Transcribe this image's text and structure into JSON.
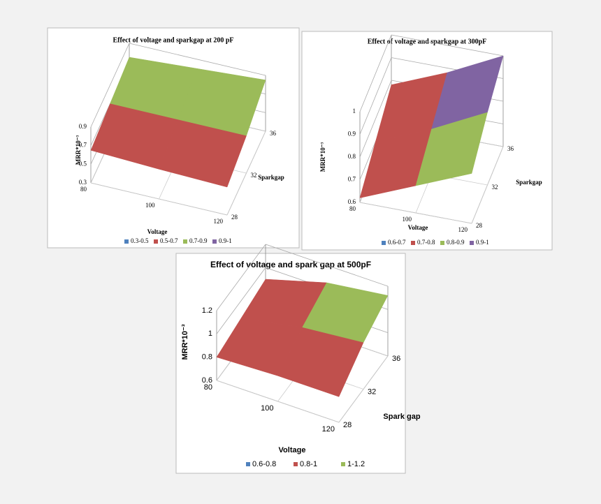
{
  "chart_data": [
    {
      "type": "surface",
      "title": "Effect of voltage and sparkgap at 200 pF",
      "x_label": "Voltage",
      "y_label": "Sparkgap",
      "z_label": "MRR*10⁻³",
      "x": [
        80,
        100,
        120
      ],
      "y": [
        28,
        32,
        36
      ],
      "xlim": [
        80,
        120
      ],
      "ylim": [
        28,
        36
      ],
      "zlim": [
        0.3,
        0.9
      ],
      "xticks": [
        80,
        100,
        120
      ],
      "yticks": [
        28,
        32,
        36
      ],
      "zticks": [
        0.3,
        0.5,
        0.7,
        0.9
      ],
      "z": [
        [
          0.65,
          0.7,
          0.75
        ],
        [
          0.62,
          0.7,
          0.8
        ],
        [
          0.6,
          0.7,
          0.85
        ]
      ],
      "series": [
        {
          "name": "0.3-0.5",
          "color": "#4f81bd"
        },
        {
          "name": "0.5-0.7",
          "color": "#c0504d"
        },
        {
          "name": "0.7-0.9",
          "color": "#9bbb59"
        },
        {
          "name": "0.9-1",
          "color": "#8064a2"
        }
      ]
    },
    {
      "type": "surface",
      "title": "Effect of voltage and sparkgap at 300pF",
      "x_label": "Voltage",
      "y_label": "Sparkgap",
      "z_label": "MRR*10⁻³",
      "x": [
        80,
        100,
        120
      ],
      "y": [
        28,
        32,
        36
      ],
      "xlim": [
        80,
        120
      ],
      "ylim": [
        28,
        36
      ],
      "zlim": [
        0.6,
        1
      ],
      "xticks": [
        80,
        100,
        120
      ],
      "yticks": [
        28,
        32,
        36
      ],
      "zticks": [
        0.6,
        0.7,
        0.8,
        0.9,
        1
      ],
      "z": [
        [
          0.62,
          0.7,
          0.78
        ],
        [
          0.72,
          0.8,
          0.88
        ],
        [
          0.82,
          0.92,
          1
        ]
      ],
      "series": [
        {
          "name": "0.6-0.7",
          "color": "#4f81bd"
        },
        {
          "name": "0.7-0.8",
          "color": "#c0504d"
        },
        {
          "name": "0.8-0.9",
          "color": "#9bbb59"
        },
        {
          "name": "0.9-1",
          "color": "#8064a2"
        }
      ]
    },
    {
      "type": "surface",
      "title": "Effect of voltage and spark gap at 500pF",
      "x_label": "Voltage",
      "y_label": "Spark gap",
      "z_label": "MRR*10⁻³",
      "x": [
        80,
        100,
        120
      ],
      "y": [
        28,
        32,
        36
      ],
      "xlim": [
        80,
        120
      ],
      "ylim": [
        28,
        36
      ],
      "zlim": [
        0.6,
        1.2
      ],
      "xticks": [
        80,
        100,
        120
      ],
      "yticks": [
        28,
        32,
        36
      ],
      "zticks": [
        0.6,
        0.8,
        1,
        1.2
      ],
      "z": [
        [
          0.8,
          0.85,
          0.9
        ],
        [
          0.82,
          0.95,
          1.05
        ],
        [
          0.82,
          1,
          1.12
        ]
      ],
      "series": [
        {
          "name": "0.6-0.8",
          "color": "#4f81bd"
        },
        {
          "name": "0.8-1",
          "color": "#c0504d"
        },
        {
          "name": "1-1.2",
          "color": "#9bbb59"
        }
      ]
    }
  ]
}
